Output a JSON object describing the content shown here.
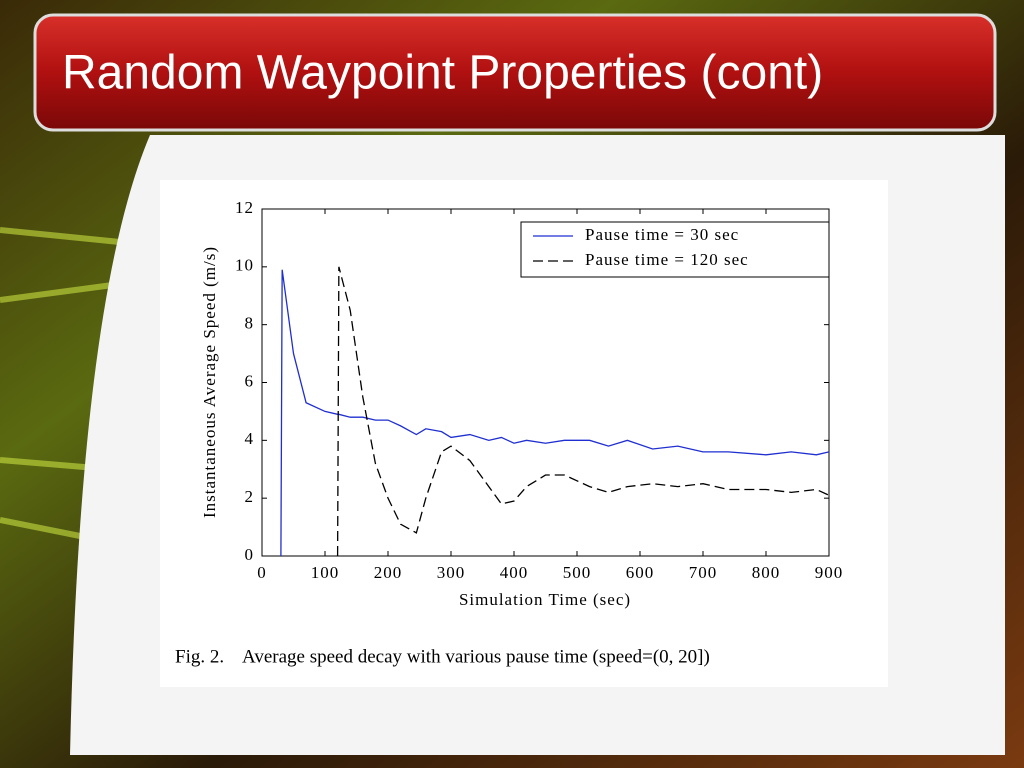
{
  "slide": {
    "title": "Random Waypoint Properties (cont)"
  },
  "chart_data": {
    "type": "line",
    "caption": "Fig. 2.    Average speed decay with various pause time (speed=(0, 20])",
    "xlabel": "Simulation Time (sec)",
    "ylabel": "Instantaneous Average Speed (m/s)",
    "x": [
      30,
      32,
      50,
      70,
      100,
      120,
      122,
      140,
      160,
      180,
      200,
      220,
      245,
      260,
      285,
      300,
      330,
      360,
      380,
      400,
      420,
      450,
      480,
      520,
      550,
      580,
      620,
      660,
      700,
      740,
      800,
      840,
      880,
      900
    ],
    "series": [
      {
        "name": "Pause time = 30 sec",
        "color": "#1f2fd0",
        "line_style": "solid",
        "values": [
          0,
          9.9,
          7,
          5.3,
          5.0,
          4.9,
          4.9,
          4.8,
          4.8,
          4.7,
          4.7,
          4.5,
          4.2,
          4.4,
          4.3,
          4.1,
          4.2,
          4.0,
          4.1,
          3.9,
          4.0,
          3.9,
          4.0,
          4.0,
          3.8,
          4.0,
          3.7,
          3.8,
          3.6,
          3.6,
          3.5,
          3.6,
          3.5,
          3.6
        ]
      },
      {
        "name": "Pause time = 120 sec",
        "color": "#000000",
        "line_style": "dashed",
        "values": [
          null,
          null,
          null,
          null,
          null,
          0,
          10,
          8.5,
          5.5,
          3.2,
          2,
          1.1,
          0.8,
          2,
          3.6,
          3.8,
          3.3,
          2.4,
          1.8,
          1.9,
          2.4,
          2.8,
          2.8,
          2.4,
          2.2,
          2.4,
          2.5,
          2.4,
          2.5,
          2.3,
          2.3,
          2.2,
          2.3,
          2.1
        ]
      }
    ],
    "xlim": [
      0,
      900
    ],
    "xticks": [
      0,
      100,
      200,
      300,
      400,
      500,
      600,
      700,
      800,
      900
    ],
    "ylim": [
      0,
      12
    ],
    "yticks": [
      0,
      2,
      4,
      6,
      8,
      10,
      12
    ],
    "legend": "upper right",
    "grid": false
  }
}
